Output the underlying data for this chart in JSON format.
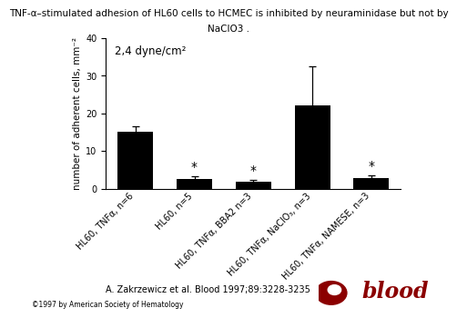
{
  "title_line1": "TNF-α–stimulated adhesion of HL60 cells to HCMEC is inhibited by neuraminidase but not by",
  "title_line2": "NaClO3 .",
  "categories": [
    "HL60, TNFα, n=6",
    "HL60, n=5",
    "HL60, TNFα, BBA2 n=3",
    "HL60, TNFα, NaClO₃, n=3",
    "HL60, TNFα, NAMESE, n=3"
  ],
  "values": [
    15.0,
    2.5,
    1.8,
    22.0,
    2.8
  ],
  "errors": [
    1.5,
    0.8,
    0.5,
    10.5,
    0.8
  ],
  "bar_color": "#000000",
  "ylabel": "number of adherent cells, mm⁻²",
  "ylim": [
    0,
    40
  ],
  "yticks": [
    0,
    10,
    20,
    30,
    40
  ],
  "annotation": "2,4 dyne/cm²",
  "star_indices": [
    1,
    2,
    4
  ],
  "citation": "A. Zakrzewicz et al. Blood 1997;89:3228-3235",
  "copyright": "©1997 by American Society of Hematology",
  "background_color": "#ffffff",
  "tick_label_fontsize": 7,
  "ylabel_fontsize": 7.5,
  "annotation_fontsize": 8.5,
  "title_fontsize": 7.5,
  "citation_fontsize": 7,
  "copyright_fontsize": 5.5
}
